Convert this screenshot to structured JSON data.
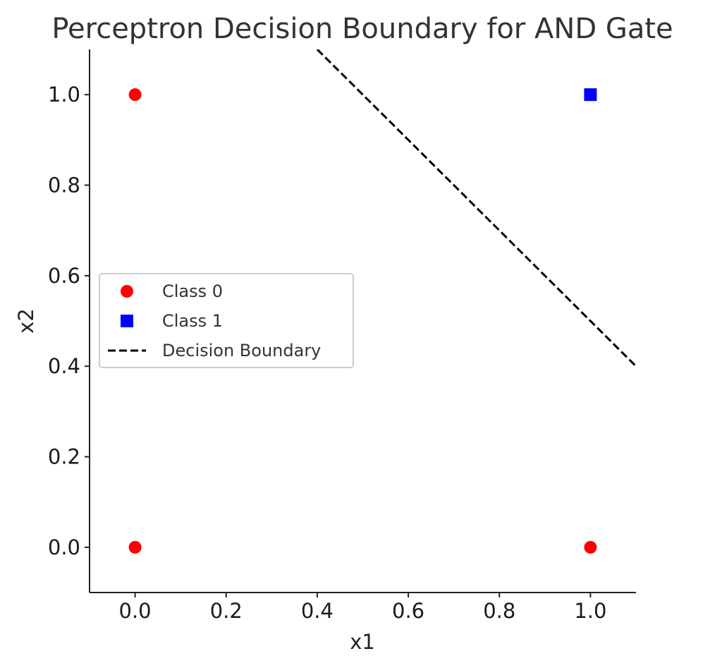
{
  "chart_data": {
    "type": "scatter",
    "title": "Perceptron Decision Boundary for AND Gate",
    "xlabel": "x1",
    "ylabel": "x2",
    "xlim": [
      -0.1,
      1.1
    ],
    "ylim": [
      -0.1,
      1.1
    ],
    "xticks": [
      0.0,
      0.2,
      0.4,
      0.6,
      0.8,
      1.0
    ],
    "yticks": [
      0.0,
      0.2,
      0.4,
      0.6,
      0.8,
      1.0
    ],
    "tick_format": "1 decimal",
    "grid": false,
    "legend_placement": "center-left",
    "series": [
      {
        "name": "Class 0",
        "marker": "circle",
        "color": "#ff0000",
        "points": [
          [
            0,
            0
          ],
          [
            0,
            1
          ],
          [
            1,
            0
          ]
        ]
      },
      {
        "name": "Class 1",
        "marker": "square",
        "color": "#0000ff",
        "points": [
          [
            1,
            1
          ]
        ]
      },
      {
        "name": "Decision Boundary",
        "style": "dashed-line",
        "color": "#000000",
        "points": [
          [
            0.4,
            1.1
          ],
          [
            1.1,
            0.4
          ]
        ]
      }
    ]
  }
}
